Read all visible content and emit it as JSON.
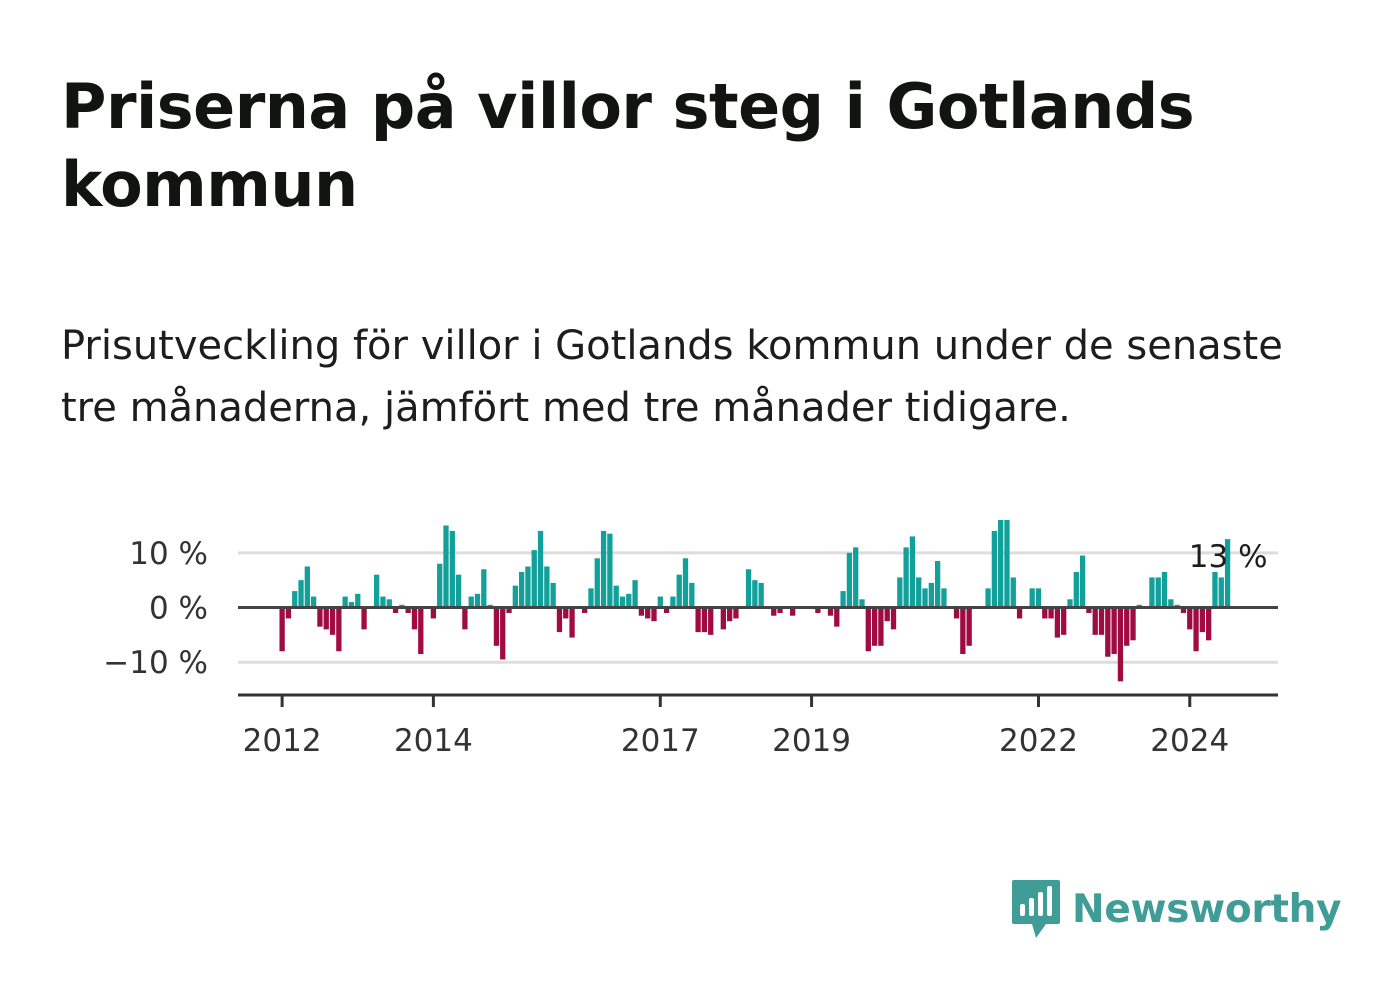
{
  "title": "Priserna på villor steg i Gotlands kommun",
  "subtitle": "Prisutveckling för villor i Gotlands kommun under de senaste tre månaderna, jämfört med tre månader tidigare.",
  "brand": {
    "name": "Newsworthy",
    "color": "#3f9c96",
    "icon": "bar-chart-speech-bubble-icon"
  },
  "colors": {
    "positive": "#12a19a",
    "negative": "#a00b40",
    "grid": "#dddddd",
    "zero_line": "#444444",
    "axis": "#333333"
  },
  "chart_data": {
    "type": "bar",
    "x_start": "2012-01",
    "x_end": "2024-06",
    "xlim": [
      "2011-06",
      "2025-03"
    ],
    "ylim": [
      -16,
      16
    ],
    "y_ticks": [
      10,
      0,
      -10
    ],
    "y_tick_labels": [
      "10 %",
      "0 %",
      "−10 %"
    ],
    "x_tick_labels": [
      "2012",
      "2014",
      "2017",
      "2019",
      "2022",
      "2024"
    ],
    "last_value_label": "13 %",
    "grid": true,
    "values": [
      -8,
      -2,
      3,
      5,
      7.5,
      2,
      -3.5,
      -4,
      -5,
      -8,
      2,
      1,
      2.5,
      -4,
      0,
      6,
      2,
      1.5,
      -1,
      0.5,
      -1,
      -4,
      -8.5,
      0,
      -2,
      8,
      15,
      14,
      6,
      -4,
      2,
      2.5,
      7,
      0.5,
      -7,
      -9.5,
      -1,
      4,
      6.5,
      7.5,
      10.5,
      14,
      7.5,
      4.5,
      -4.5,
      -2,
      -5.5,
      0,
      -1,
      3.5,
      9,
      14,
      13.5,
      4,
      2,
      2.5,
      5,
      -1.5,
      -2,
      -2.5,
      2,
      -1,
      2,
      6,
      9,
      4.5,
      -4.5,
      -4.5,
      -5,
      0,
      -4,
      -2.5,
      -2,
      0,
      7,
      5,
      4.5,
      0,
      -1.5,
      -1,
      0,
      -1.5,
      0,
      0,
      0,
      -1,
      0,
      -1.5,
      -3.5,
      3,
      10,
      11,
      1.5,
      -8,
      -7,
      -7,
      -2.5,
      -4,
      5.5,
      11,
      13,
      5.5,
      3.5,
      4.5,
      8.5,
      3.5,
      0,
      -2,
      -8.5,
      -7,
      0,
      0,
      3.5,
      14,
      16,
      16,
      5.5,
      -2,
      0,
      3.5,
      3.5,
      -2,
      -2,
      -5.5,
      -5,
      1.5,
      6.5,
      9.5,
      -1,
      -5,
      -5,
      -9,
      -8.5,
      -13.5,
      -7,
      -6,
      0.5,
      0,
      5.5,
      5.5,
      6.5,
      1.5,
      0.5,
      -1,
      -4,
      -8,
      -4.5,
      -6,
      6.5,
      5.5,
      12.5
    ]
  }
}
